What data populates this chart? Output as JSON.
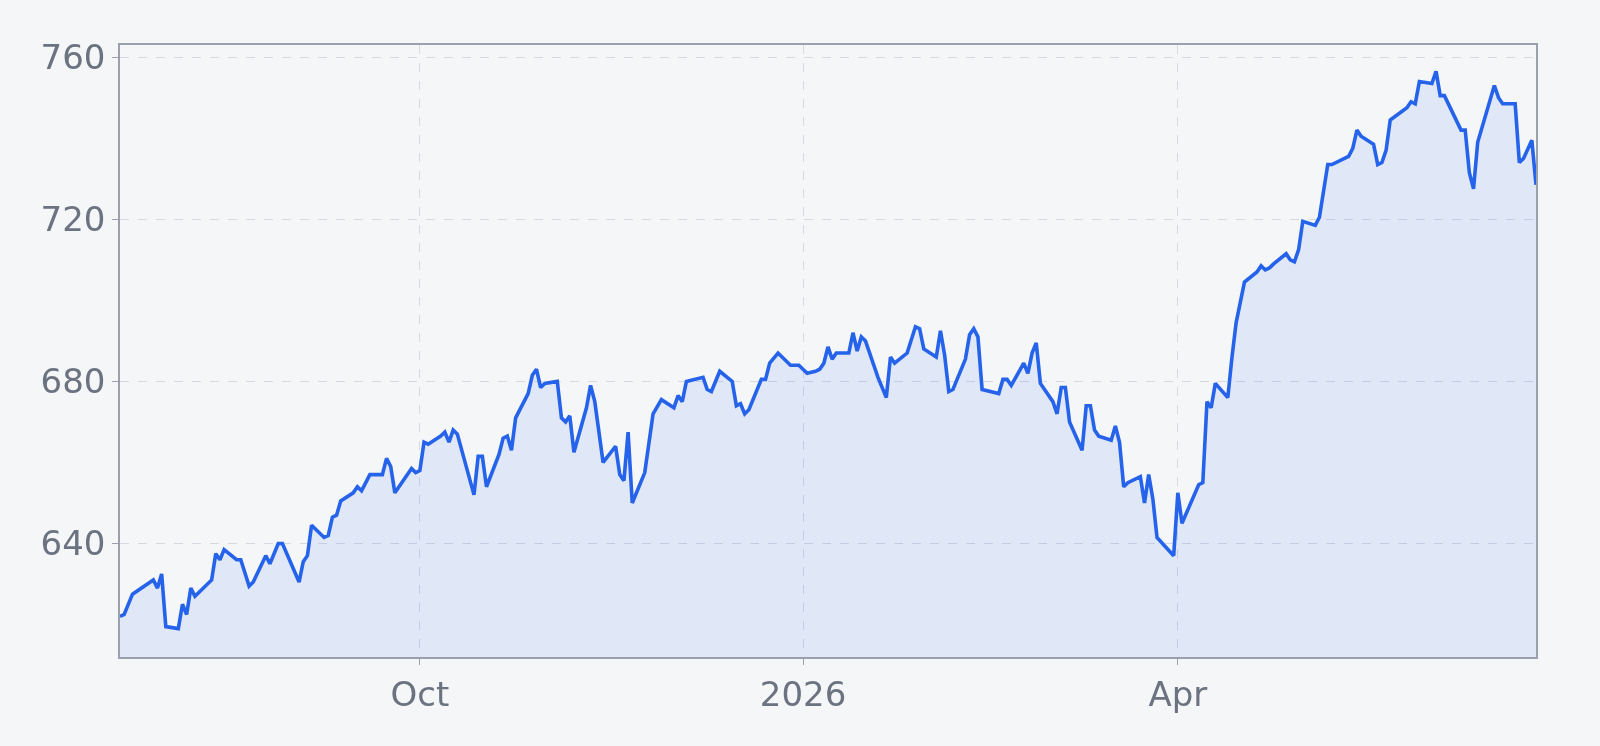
{
  "chart_data": {
    "type": "area",
    "x": [
      "2025-07-21",
      "2025-07-22",
      "2025-07-24",
      "2025-07-29",
      "2025-07-30",
      "2025-07-31",
      "2025-08-01",
      "2025-08-04",
      "2025-08-05",
      "2025-08-06",
      "2025-08-07",
      "2025-08-08",
      "2025-08-12",
      "2025-08-13",
      "2025-08-14",
      "2025-08-15",
      "2025-08-18",
      "2025-08-19",
      "2025-08-21",
      "2025-08-22",
      "2025-08-25",
      "2025-08-26",
      "2025-08-28",
      "2025-08-29",
      "2025-09-02",
      "2025-09-03",
      "2025-09-04",
      "2025-09-05",
      "2025-09-08",
      "2025-09-09",
      "2025-09-10",
      "2025-09-11",
      "2025-09-12",
      "2025-09-15",
      "2025-09-16",
      "2025-09-17",
      "2025-09-19",
      "2025-09-22",
      "2025-09-23",
      "2025-09-24",
      "2025-09-25",
      "2025-09-29",
      "2025-09-30",
      "2025-10-01",
      "2025-10-02",
      "2025-10-03",
      "2025-10-06",
      "2025-10-07",
      "2025-10-08",
      "2025-10-09",
      "2025-10-10",
      "2025-10-14",
      "2025-10-15",
      "2025-10-16",
      "2025-10-17",
      "2025-10-20",
      "2025-10-21",
      "2025-10-22",
      "2025-10-23",
      "2025-10-24",
      "2025-10-27",
      "2025-10-28",
      "2025-10-29",
      "2025-10-30",
      "2025-10-31",
      "2025-11-03",
      "2025-11-04",
      "2025-11-05",
      "2025-11-06",
      "2025-11-07",
      "2025-11-10",
      "2025-11-11",
      "2025-11-12",
      "2025-11-14",
      "2025-11-17",
      "2025-11-18",
      "2025-11-19",
      "2025-11-20",
      "2025-11-21",
      "2025-11-24",
      "2025-11-26",
      "2025-11-28",
      "2025-12-01",
      "2025-12-02",
      "2025-12-03",
      "2025-12-04",
      "2025-12-08",
      "2025-12-09",
      "2025-12-10",
      "2025-12-12",
      "2025-12-15",
      "2025-12-16",
      "2025-12-17",
      "2025-12-18",
      "2025-12-19",
      "2025-12-22",
      "2025-12-23",
      "2025-12-24",
      "2025-12-26",
      "2025-12-29",
      "2025-12-30",
      "2025-12-31",
      "2026-01-02",
      "2026-01-04",
      "2026-01-05",
      "2026-01-06",
      "2026-01-07",
      "2026-01-08",
      "2026-01-09",
      "2026-01-12",
      "2026-01-13",
      "2026-01-14",
      "2026-01-15",
      "2026-01-16",
      "2026-01-19",
      "2026-01-21",
      "2026-01-22",
      "2026-01-23",
      "2026-01-26",
      "2026-01-28",
      "2026-01-29",
      "2026-01-30",
      "2026-02-02",
      "2026-02-03",
      "2026-02-04",
      "2026-02-05",
      "2026-02-06",
      "2026-02-09",
      "2026-02-10",
      "2026-02-11",
      "2026-02-12",
      "2026-02-13",
      "2026-02-17",
      "2026-02-18",
      "2026-02-19",
      "2026-02-20",
      "2026-02-23",
      "2026-02-24",
      "2026-02-25",
      "2026-02-26",
      "2026-02-27",
      "2026-03-02",
      "2026-03-03",
      "2026-03-04",
      "2026-03-05",
      "2026-03-06",
      "2026-03-09",
      "2026-03-10",
      "2026-03-11",
      "2026-03-12",
      "2026-03-13",
      "2026-03-16",
      "2026-03-17",
      "2026-03-18",
      "2026-03-19",
      "2026-03-20",
      "2026-03-23",
      "2026-03-24",
      "2026-03-25",
      "2026-03-26",
      "2026-03-27",
      "2026-03-31",
      "2026-04-01",
      "2026-04-02",
      "2026-04-06",
      "2026-04-07",
      "2026-04-08",
      "2026-04-09",
      "2026-04-10",
      "2026-04-13",
      "2026-04-14",
      "2026-04-15",
      "2026-04-17",
      "2026-04-20",
      "2026-04-21",
      "2026-04-22",
      "2026-04-23",
      "2026-04-24",
      "2026-04-27",
      "2026-04-28",
      "2026-04-29",
      "2026-04-30",
      "2026-05-01",
      "2026-05-04",
      "2026-05-05",
      "2026-05-07",
      "2026-05-08",
      "2026-05-12",
      "2026-05-13",
      "2026-05-14",
      "2026-05-15",
      "2026-05-18",
      "2026-05-19",
      "2026-05-20",
      "2026-05-21",
      "2026-05-22",
      "2026-05-26",
      "2026-05-27",
      "2026-05-28",
      "2026-05-29",
      "2026-06-01",
      "2026-06-02",
      "2026-06-03",
      "2026-06-04",
      "2026-06-08",
      "2026-06-09",
      "2026-06-10",
      "2026-06-11",
      "2026-06-12",
      "2026-06-16",
      "2026-06-17",
      "2026-06-18",
      "2026-06-21",
      "2026-06-22",
      "2026-06-23",
      "2026-06-25",
      "2026-06-26"
    ],
    "series": [
      {
        "color": "#2563eb",
        "values": [
          622,
          622.5,
          627.5,
          631,
          629,
          632.5,
          619.5,
          619,
          625,
          622.5,
          629,
          627,
          631,
          637.5,
          636,
          638.5,
          636,
          636,
          629.5,
          630.5,
          637,
          635,
          640,
          640,
          630.5,
          635.5,
          637,
          644.5,
          641.5,
          642,
          646.5,
          647,
          650.5,
          652.5,
          654,
          653,
          657,
          657,
          661,
          659,
          652.5,
          658.5,
          657.5,
          658,
          665,
          664.5,
          666.5,
          667.5,
          665,
          668,
          667,
          652,
          661.5,
          661.5,
          654,
          662,
          666,
          666.5,
          663,
          671,
          677,
          681.5,
          683,
          678.5,
          679.5,
          680,
          671,
          670,
          671.5,
          662.5,
          673.5,
          679,
          675,
          660,
          664,
          657,
          655.5,
          667.5,
          650,
          657.5,
          672,
          675.5,
          673.5,
          676.5,
          675,
          680,
          681,
          678,
          677.5,
          682.5,
          680,
          674,
          674.5,
          672,
          673,
          680.5,
          680.5,
          684.5,
          687,
          684,
          684,
          684,
          682,
          682.5,
          683,
          684.5,
          688.5,
          685.5,
          687,
          687,
          692,
          687.5,
          691,
          690,
          681,
          676,
          686,
          684.5,
          687,
          693.5,
          693,
          688,
          686,
          692.5,
          686.5,
          677.5,
          678,
          685.5,
          691.5,
          693,
          691,
          678,
          677,
          680.5,
          680.5,
          679,
          684.5,
          682,
          687,
          689.5,
          679.5,
          675,
          672,
          678.5,
          678.5,
          670,
          663,
          674,
          674,
          668,
          666.5,
          665.5,
          669,
          665,
          654,
          655,
          656.5,
          650,
          657,
          651,
          641.5,
          637,
          652.5,
          645,
          654.5,
          655,
          675,
          673.5,
          679.5,
          676,
          686,
          694.5,
          704.5,
          707,
          708.5,
          707.5,
          708,
          709,
          711.5,
          710,
          709.5,
          712.5,
          719.5,
          718.5,
          720.5,
          733.5,
          733.5,
          735.5,
          737.5,
          742,
          740.5,
          738.5,
          733.5,
          734,
          737,
          744.5,
          747.5,
          749,
          748.5,
          754,
          753.5,
          756.5,
          750.5,
          750.5,
          742,
          742,
          731.5,
          727.5,
          739,
          753,
          750,
          748.5,
          748.5,
          734,
          735,
          739.5,
          728.5
        ]
      }
    ],
    "xlim": [
      "2025-07-21",
      "2026-06-26"
    ],
    "xticks": [
      {
        "value": "2025-10-01",
        "label": "Oct"
      },
      {
        "value": "2026-01-01",
        "label": "2026"
      },
      {
        "value": "2026-04-01",
        "label": "Apr"
      }
    ],
    "ylim": [
      612,
      763
    ],
    "yticks": [
      640,
      680,
      720,
      760
    ],
    "grid": true
  }
}
